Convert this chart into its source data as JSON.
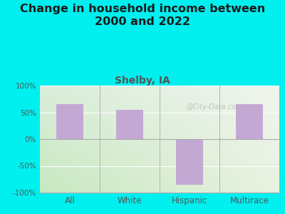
{
  "title": "Change in household income between\n2000 and 2022",
  "subtitle": "Shelby, IA",
  "categories": [
    "All",
    "White",
    "Hispanic",
    "Multirace"
  ],
  "values": [
    65,
    55,
    -85,
    65
  ],
  "bar_color": "#c4a8d4",
  "bar_width": 0.45,
  "ylim": [
    -100,
    100
  ],
  "yticks": [
    -100,
    -50,
    0,
    50,
    100
  ],
  "ytick_labels": [
    "-100%",
    "-50%",
    "0%",
    "50%",
    "100%"
  ],
  "background_color": "#00efef",
  "plot_bg_topleft": "#c8e8c0",
  "plot_bg_topright": "#f5f5f0",
  "plot_bg_bottom": "#d8edd0",
  "title_fontsize": 11.5,
  "title_color": "#1a1a1a",
  "subtitle_fontsize": 10,
  "subtitle_color": "#555555",
  "tick_label_color": "#555555",
  "watermark": "@City-Data.com",
  "grid_color": "#cccccc"
}
